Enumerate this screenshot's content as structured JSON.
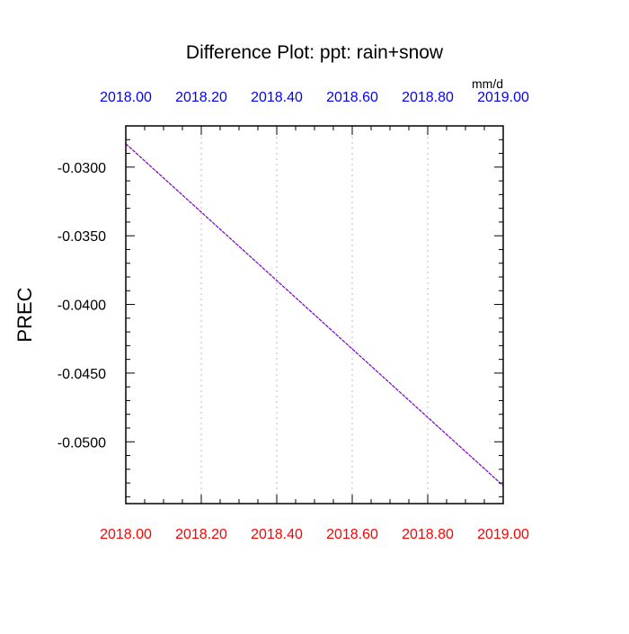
{
  "chart_data": {
    "type": "line",
    "title": "Difference Plot: ppt: rain+snow",
    "units_label": "mm/d",
    "ylabel": "PREC",
    "xlabel": "",
    "xlim": [
      2018.0,
      2019.0
    ],
    "ylim": [
      -0.0545,
      -0.027
    ],
    "x_ticks": [
      2018.0,
      2018.2,
      2018.4,
      2018.6,
      2018.8,
      2019.0
    ],
    "x_tick_labels": [
      "2018.00",
      "2018.20",
      "2018.40",
      "2018.60",
      "2018.80",
      "2019.00"
    ],
    "y_ticks": [
      -0.03,
      -0.035,
      -0.04,
      -0.045,
      -0.05
    ],
    "y_tick_labels": [
      "-0.0300",
      "-0.0350",
      "-0.0400",
      "-0.0450",
      "-0.0500"
    ],
    "grid_x": true,
    "grid_y": false,
    "series": [
      {
        "x": [
          2018.0,
          2019.0
        ],
        "values": [
          -0.0283,
          -0.0532
        ]
      }
    ],
    "colors": {
      "line": "#7a00c8",
      "top_tick_labels": "#0000ff",
      "bottom_tick_labels": "#ff0000",
      "axis": "#000000",
      "grid": "#bbbbbb"
    }
  }
}
